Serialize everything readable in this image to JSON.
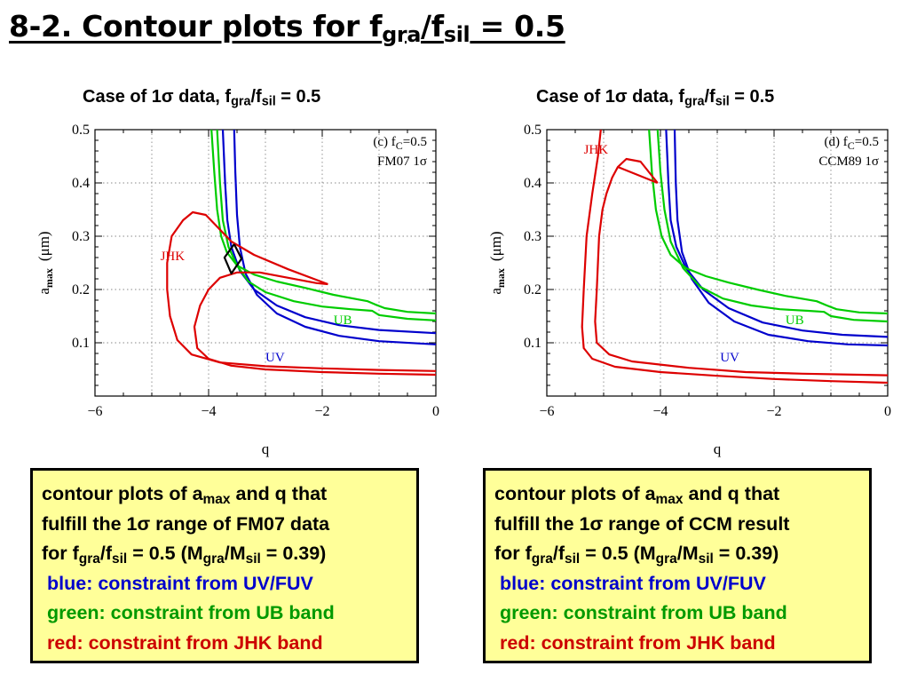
{
  "slide_title": {
    "prefix": "8-2. Contour plots for f",
    "sub1": "gra",
    "mid": "/f",
    "sub2": "sil",
    "suffix": " = 0.5"
  },
  "panels": [
    {
      "heading": {
        "prefix": "Case of 1σ data, f",
        "sub1": "gra",
        "mid": "/f",
        "sub2": "sil",
        "suffix": " = 0.5"
      },
      "chart_data": {
        "type": "line",
        "annotation": "(c) f=0.5  FM07 1σ",
        "annotation_line1": "(c) f",
        "annotation_sub": "C",
        "annotation_line1b": "=0.5",
        "annotation_line2": "FM07 1σ",
        "xlabel": "q",
        "ylabel_main": "a",
        "ylabel_sub": "max",
        "ylabel_unit": "(μm)",
        "xlim": [
          -6,
          0
        ],
        "ylim": [
          0,
          0.5
        ],
        "x_ticks": [
          "−6",
          "−4",
          "−2",
          "0"
        ],
        "y_ticks": [
          "0.1",
          "0.2",
          "0.3",
          "0.4",
          "0.5"
        ],
        "grid": true,
        "series": [
          {
            "name": "UV",
            "color": "#0000cc",
            "label_at": [
              -3.0,
              0.065
            ],
            "curves": [
              [
                [
                  -3.55,
                  0.5
                ],
                [
                  -3.53,
                  0.42
                ],
                [
                  -3.5,
                  0.34
                ],
                [
                  -3.45,
                  0.28
                ],
                [
                  -3.35,
                  0.23
                ],
                [
                  -3.15,
                  0.19
                ],
                [
                  -2.8,
                  0.155
                ],
                [
                  -2.3,
                  0.13
                ],
                [
                  -1.7,
                  0.113
                ],
                [
                  -1.0,
                  0.103
                ],
                [
                  0,
                  0.097
                ]
              ],
              [
                [
                  -3.75,
                  0.5
                ],
                [
                  -3.71,
                  0.4
                ],
                [
                  -3.67,
                  0.33
                ],
                [
                  -3.6,
                  0.28
                ],
                [
                  -3.45,
                  0.235
                ],
                [
                  -3.2,
                  0.2
                ],
                [
                  -2.8,
                  0.17
                ],
                [
                  -2.3,
                  0.148
                ],
                [
                  -1.7,
                  0.133
                ],
                [
                  -1.0,
                  0.124
                ],
                [
                  0,
                  0.118
                ]
              ]
            ]
          },
          {
            "name": "UB",
            "color": "#00cc00",
            "label_at": [
              -1.8,
              0.135
            ],
            "curves": [
              [
                [
                  -3.85,
                  0.5
                ],
                [
                  -3.8,
                  0.4
                ],
                [
                  -3.75,
                  0.33
                ],
                [
                  -3.65,
                  0.28
                ],
                [
                  -3.5,
                  0.245
                ],
                [
                  -3.3,
                  0.215
                ],
                [
                  -3.0,
                  0.195
                ],
                [
                  -2.5,
                  0.178
                ],
                [
                  -2.0,
                  0.168
                ],
                [
                  -1.5,
                  0.163
                ],
                [
                  -1.12,
                  0.16
                ],
                [
                  -1.0,
                  0.152
                ],
                [
                  -0.5,
                  0.145
                ],
                [
                  0,
                  0.142
                ]
              ],
              [
                [
                  -3.95,
                  0.5
                ],
                [
                  -3.9,
                  0.42
                ],
                [
                  -3.85,
                  0.35
                ],
                [
                  -3.78,
                  0.3
                ],
                [
                  -3.68,
                  0.27
                ],
                [
                  -3.5,
                  0.245
                ],
                [
                  -3.2,
                  0.228
                ],
                [
                  -2.8,
                  0.215
                ],
                [
                  -2.3,
                  0.203
                ],
                [
                  -1.8,
                  0.19
                ],
                [
                  -1.2,
                  0.178
                ],
                [
                  -1.07,
                  0.172
                ],
                [
                  -0.9,
                  0.165
                ],
                [
                  -0.5,
                  0.158
                ],
                [
                  0,
                  0.155
                ]
              ]
            ]
          },
          {
            "name": "JHK",
            "color": "#dd0000",
            "label_at": [
              -4.85,
              0.255
            ],
            "curves": [
              [
                [
                  -1.9,
                  0.21
                ],
                [
                  -2.6,
                  0.238
                ],
                [
                  -3.2,
                  0.265
                ],
                [
                  -3.6,
                  0.29
                ],
                [
                  -3.85,
                  0.318
                ],
                [
                  -4.05,
                  0.34
                ],
                [
                  -4.28,
                  0.345
                ],
                [
                  -4.45,
                  0.33
                ],
                [
                  -4.65,
                  0.3
                ],
                [
                  -4.73,
                  0.25
                ],
                [
                  -4.73,
                  0.2
                ],
                [
                  -4.68,
                  0.15
                ],
                [
                  -4.55,
                  0.105
                ],
                [
                  -4.3,
                  0.078
                ],
                [
                  -3.8,
                  0.063
                ],
                [
                  -3.0,
                  0.056
                ],
                [
                  -2.0,
                  0.052
                ],
                [
                  -1.0,
                  0.049
                ],
                [
                  0,
                  0.047
                ]
              ],
              [
                [
                  0,
                  0.04
                ],
                [
                  -1.0,
                  0.042
                ],
                [
                  -2.0,
                  0.045
                ],
                [
                  -3.0,
                  0.05
                ],
                [
                  -3.6,
                  0.057
                ],
                [
                  -4.0,
                  0.07
                ],
                [
                  -4.2,
                  0.09
                ],
                [
                  -4.25,
                  0.13
                ],
                [
                  -4.15,
                  0.17
                ],
                [
                  -4.0,
                  0.2
                ],
                [
                  -3.8,
                  0.222
                ],
                [
                  -3.5,
                  0.232
                ],
                [
                  -3.1,
                  0.232
                ],
                [
                  -2.6,
                  0.222
                ],
                [
                  -2.1,
                  0.212
                ],
                [
                  -1.9,
                  0.21
                ]
              ]
            ]
          },
          {
            "name": "",
            "color": "#000000",
            "curves": [
              [
                [
                  -3.55,
                  0.285
                ],
                [
                  -3.72,
                  0.26
                ],
                [
                  -3.6,
                  0.23
                ],
                [
                  -3.42,
                  0.258
                ],
                [
                  -3.55,
                  0.285
                ]
              ]
            ]
          }
        ]
      },
      "caption": {
        "l1_a": "contour plots of a",
        "l1_sub": "max",
        "l1_b": " and q that",
        "l2": "fulfill the 1σ range of FM07 data",
        "l3_a": "for f",
        "l3_s1": "gra",
        "l3_b": "/f",
        "l3_s2": "sil",
        "l3_c": " = 0.5 (M",
        "l3_s3": "gra",
        "l3_d": "/M",
        "l3_s4": "sil",
        "l3_e": " = 0.39)",
        "blue": "blue: constraint from UV/FUV",
        "green": "green: constraint from UB band",
        "red": "red: constraint from JHK band"
      }
    },
    {
      "heading": {
        "prefix": "Case of 1σ data, f",
        "sub1": "gra",
        "mid": "/f",
        "sub2": "sil",
        "suffix": " = 0.5"
      },
      "chart_data": {
        "type": "line",
        "annotation": "(d) f=0.5  CCM89 1σ",
        "annotation_line1": "(d) f",
        "annotation_sub": "C",
        "annotation_line1b": "=0.5",
        "annotation_line2": "CCM89 1σ",
        "xlabel": "q",
        "ylabel_main": "a",
        "ylabel_sub": "max",
        "ylabel_unit": "(μm)",
        "xlim": [
          -6,
          0
        ],
        "ylim": [
          0,
          0.5
        ],
        "x_ticks": [
          "−6",
          "−4",
          "−2",
          "0"
        ],
        "y_ticks": [
          "0.1",
          "0.2",
          "0.3",
          "0.4",
          "0.5"
        ],
        "grid": true,
        "series": [
          {
            "name": "UV",
            "color": "#0000cc",
            "label_at": [
              -2.95,
              0.065
            ],
            "curves": [
              [
                [
                  -3.75,
                  0.5
                ],
                [
                  -3.73,
                  0.4
                ],
                [
                  -3.7,
                  0.33
                ],
                [
                  -3.62,
                  0.27
                ],
                [
                  -3.45,
                  0.22
                ],
                [
                  -3.15,
                  0.175
                ],
                [
                  -2.7,
                  0.14
                ],
                [
                  -2.1,
                  0.115
                ],
                [
                  -1.4,
                  0.103
                ],
                [
                  -0.7,
                  0.097
                ],
                [
                  0,
                  0.095
                ]
              ],
              [
                [
                  -3.9,
                  0.5
                ],
                [
                  -3.86,
                  0.4
                ],
                [
                  -3.82,
                  0.33
                ],
                [
                  -3.72,
                  0.28
                ],
                [
                  -3.55,
                  0.24
                ],
                [
                  -3.25,
                  0.2
                ],
                [
                  -2.8,
                  0.165
                ],
                [
                  -2.2,
                  0.138
                ],
                [
                  -1.5,
                  0.123
                ],
                [
                  -0.8,
                  0.115
                ],
                [
                  0,
                  0.111
                ]
              ]
            ]
          },
          {
            "name": "UB",
            "color": "#00cc00",
            "label_at": [
              -1.8,
              0.135
            ],
            "curves": [
              [
                [
                  -4.05,
                  0.5
                ],
                [
                  -4.0,
                  0.42
                ],
                [
                  -3.93,
                  0.35
                ],
                [
                  -3.82,
                  0.29
                ],
                [
                  -3.6,
                  0.24
                ],
                [
                  -3.3,
                  0.205
                ],
                [
                  -2.9,
                  0.183
                ],
                [
                  -2.4,
                  0.17
                ],
                [
                  -1.9,
                  0.163
                ],
                [
                  -1.4,
                  0.16
                ],
                [
                  -1.12,
                  0.158
                ],
                [
                  -1.0,
                  0.15
                ],
                [
                  -0.6,
                  0.143
                ],
                [
                  0,
                  0.14
                ]
              ],
              [
                [
                  -4.2,
                  0.5
                ],
                [
                  -4.15,
                  0.42
                ],
                [
                  -4.08,
                  0.35
                ],
                [
                  -3.98,
                  0.3
                ],
                [
                  -3.82,
                  0.265
                ],
                [
                  -3.55,
                  0.24
                ],
                [
                  -3.2,
                  0.225
                ],
                [
                  -2.8,
                  0.213
                ],
                [
                  -2.3,
                  0.2
                ],
                [
                  -1.8,
                  0.188
                ],
                [
                  -1.25,
                  0.178
                ],
                [
                  -1.07,
                  0.17
                ],
                [
                  -0.9,
                  0.163
                ],
                [
                  -0.5,
                  0.157
                ],
                [
                  0,
                  0.155
                ]
              ]
            ]
          },
          {
            "name": "JHK",
            "color": "#dd0000",
            "label_at": [
              -5.35,
              0.455
            ],
            "curves": [
              [
                [
                  -5.05,
                  0.5
                ],
                [
                  -5.1,
                  0.45
                ],
                [
                  -5.2,
                  0.38
                ],
                [
                  -5.3,
                  0.3
                ],
                [
                  -5.35,
                  0.2
                ],
                [
                  -5.38,
                  0.13
                ],
                [
                  -5.35,
                  0.09
                ],
                [
                  -5.2,
                  0.07
                ],
                [
                  -4.8,
                  0.055
                ],
                [
                  -4.0,
                  0.045
                ],
                [
                  -3.0,
                  0.038
                ],
                [
                  -2.0,
                  0.032
                ],
                [
                  -1.0,
                  0.028
                ],
                [
                  0,
                  0.025
                ]
              ],
              [
                [
                  -4.05,
                  0.4
                ],
                [
                  -4.35,
                  0.44
                ],
                [
                  -4.6,
                  0.445
                ],
                [
                  -4.75,
                  0.43
                ],
                [
                  -4.85,
                  0.41
                ],
                [
                  -4.95,
                  0.38
                ],
                [
                  -5.02,
                  0.35
                ],
                [
                  -5.08,
                  0.3
                ],
                [
                  -5.12,
                  0.2
                ],
                [
                  -5.15,
                  0.14
                ],
                [
                  -5.12,
                  0.1
                ],
                [
                  -4.9,
                  0.078
                ],
                [
                  -4.5,
                  0.065
                ],
                [
                  -3.5,
                  0.053
                ],
                [
                  -2.5,
                  0.045
                ],
                [
                  -1.5,
                  0.042
                ],
                [
                  -0.5,
                  0.04
                ],
                [
                  0,
                  0.039
                ]
              ],
              [
                [
                  -4.05,
                  0.4
                ],
                [
                  -4.75,
                  0.43
                ]
              ]
            ]
          }
        ]
      },
      "caption": {
        "l1_a": "contour plots of a",
        "l1_sub": "max",
        "l1_b": " and q that",
        "l2": "fulfill the 1σ range of CCM result",
        "l3_a": "for f",
        "l3_s1": "gra",
        "l3_b": "/f",
        "l3_s2": "sil",
        "l3_c": " = 0.5 (M",
        "l3_s3": "gra",
        "l3_d": "/M",
        "l3_s4": "sil",
        "l3_e": " = 0.39)",
        "blue": "blue: constraint from UV/FUV",
        "green": "green: constraint from UB band",
        "red": "red: constraint from JHK band"
      }
    }
  ]
}
